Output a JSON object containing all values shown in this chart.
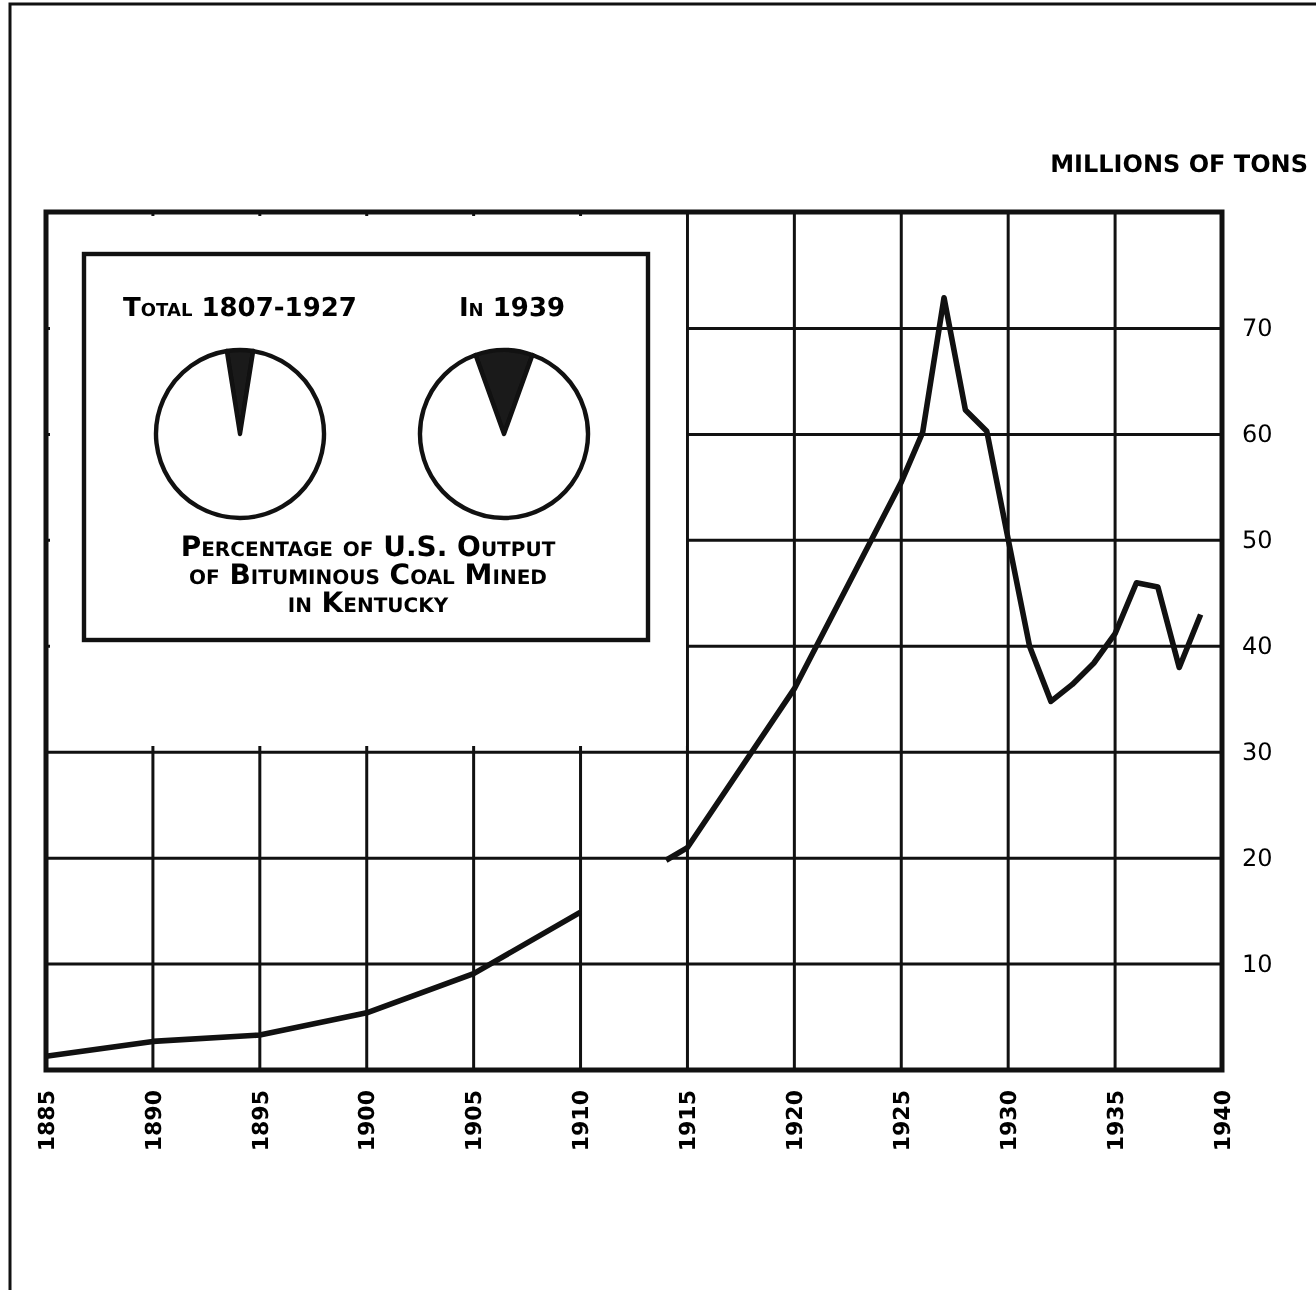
{
  "chart_data": [
    {
      "type": "line",
      "ylabel": "MILLIONS OF TONS",
      "x": [
        1885,
        1890,
        1895,
        1900,
        1905,
        1910,
        1912,
        1914,
        1915,
        1920,
        1925,
        1926,
        1927,
        1928,
        1929,
        1930,
        1931,
        1932,
        1933,
        1934,
        1935,
        1936,
        1937,
        1938,
        1939
      ],
      "series": [
        {
          "color": "#111111",
          "values": [
            1.3,
            2.7,
            3.3,
            5.4,
            9.1,
            14.9,
            null,
            19.8,
            21,
            36,
            55.5,
            60.2,
            72.9,
            62.3,
            60.3,
            50.1,
            40,
            34.8,
            36.4,
            38.4,
            41.2,
            46,
            45.6,
            38,
            43
          ]
        }
      ],
      "xlim": [
        1885,
        1940
      ],
      "xticks": [
        1885,
        1890,
        1895,
        1900,
        1905,
        1910,
        1915,
        1920,
        1925,
        1930,
        1935,
        1940
      ],
      "ylim": [
        0,
        81
      ],
      "yticks": [
        10,
        20,
        30,
        40,
        50,
        60,
        70
      ],
      "grid": true,
      "marker": "none",
      "line_style": "solid"
    },
    {
      "type": "pie",
      "title": "Total 1807-1927",
      "categories": [
        null,
        null
      ],
      "values": [
        5,
        95
      ],
      "colors": [
        "#1a1a1a",
        "#ffffff"
      ],
      "annotations": [
        "Percentage of U.S. Output of Bituminous Coal Mined in Kentucky"
      ]
    },
    {
      "type": "pie",
      "title": "In 1939",
      "categories": [
        null,
        null
      ],
      "values": [
        11,
        89
      ],
      "colors": [
        "#1a1a1a",
        "#ffffff"
      ]
    }
  ]
}
